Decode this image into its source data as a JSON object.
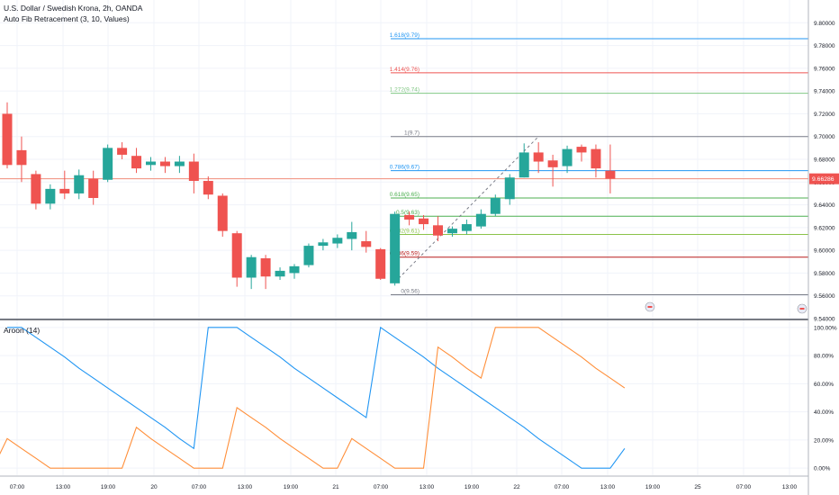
{
  "header": {
    "symbol": "U.S. Dollar / Swedish Krona, 2h, OANDA",
    "indicator": "Auto Fib Retracement (3, 10, Values)"
  },
  "aroon_label": "Aroon (14)",
  "colors": {
    "up": "#26a69a",
    "down": "#ef5350",
    "aroon_up": "#ff8f3a",
    "aroon_down": "#2196f3",
    "grid": "#f0f3fa",
    "price_line": "#f08c7a",
    "price_label_bg": "#ef5350"
  },
  "chart_data": [
    {
      "type": "candlestick",
      "ylim": [
        9.54,
        9.82
      ],
      "y_ticks": [
        "9.54000",
        "9.56000",
        "9.58000",
        "9.60000",
        "9.62000",
        "9.64000",
        "9.66000",
        "9.68000",
        "9.70000",
        "9.72000",
        "9.74000",
        "9.76000",
        "9.78000",
        "9.80000"
      ],
      "x_ticks": [
        "07:00",
        "13:00",
        "19:00",
        "20",
        "07:00",
        "13:00",
        "19:00",
        "21",
        "07:00",
        "13:00",
        "19:00",
        "22",
        "07:00",
        "13:00",
        "19:00",
        "25",
        "07:00",
        "13:00"
      ],
      "current_price": "9.66286",
      "candles": [
        {
          "o": 9.72,
          "h": 9.73,
          "l": 9.672,
          "c": 9.675
        },
        {
          "o": 9.688,
          "h": 9.7,
          "l": 9.66,
          "c": 9.675
        },
        {
          "o": 9.667,
          "h": 9.67,
          "l": 9.636,
          "c": 9.641
        },
        {
          "o": 9.641,
          "h": 9.658,
          "l": 9.636,
          "c": 9.654
        },
        {
          "o": 9.654,
          "h": 9.67,
          "l": 9.645,
          "c": 9.65
        },
        {
          "o": 9.65,
          "h": 9.671,
          "l": 9.645,
          "c": 9.666
        },
        {
          "o": 9.663,
          "h": 9.67,
          "l": 9.64,
          "c": 9.646
        },
        {
          "o": 9.662,
          "h": 9.693,
          "l": 9.66,
          "c": 9.69
        },
        {
          "o": 9.69,
          "h": 9.695,
          "l": 9.68,
          "c": 9.684
        },
        {
          "o": 9.683,
          "h": 9.69,
          "l": 9.668,
          "c": 9.672
        },
        {
          "o": 9.675,
          "h": 9.682,
          "l": 9.67,
          "c": 9.678
        },
        {
          "o": 9.678,
          "h": 9.682,
          "l": 9.668,
          "c": 9.674
        },
        {
          "o": 9.674,
          "h": 9.683,
          "l": 9.668,
          "c": 9.678
        },
        {
          "o": 9.678,
          "h": 9.685,
          "l": 9.65,
          "c": 9.661
        },
        {
          "o": 9.661,
          "h": 9.665,
          "l": 9.645,
          "c": 9.649
        },
        {
          "o": 9.648,
          "h": 9.65,
          "l": 9.612,
          "c": 9.617
        },
        {
          "o": 9.615,
          "h": 9.617,
          "l": 9.568,
          "c": 9.576
        },
        {
          "o": 9.576,
          "h": 9.596,
          "l": 9.566,
          "c": 9.594
        },
        {
          "o": 9.593,
          "h": 9.596,
          "l": 9.566,
          "c": 9.577
        },
        {
          "o": 9.577,
          "h": 9.585,
          "l": 9.574,
          "c": 9.582
        },
        {
          "o": 9.58,
          "h": 9.588,
          "l": 9.575,
          "c": 9.586
        },
        {
          "o": 9.587,
          "h": 9.606,
          "l": 9.585,
          "c": 9.604
        },
        {
          "o": 9.604,
          "h": 9.61,
          "l": 9.6,
          "c": 9.607
        },
        {
          "o": 9.606,
          "h": 9.614,
          "l": 9.602,
          "c": 9.611
        },
        {
          "o": 9.61,
          "h": 9.625,
          "l": 9.6,
          "c": 9.616
        },
        {
          "o": 9.608,
          "h": 9.617,
          "l": 9.598,
          "c": 9.603
        },
        {
          "o": 9.601,
          "h": 9.602,
          "l": 9.574,
          "c": 9.575
        },
        {
          "o": 9.571,
          "h": 9.634,
          "l": 9.569,
          "c": 9.632
        },
        {
          "o": 9.631,
          "h": 9.634,
          "l": 9.622,
          "c": 9.627
        },
        {
          "o": 9.628,
          "h": 9.631,
          "l": 9.618,
          "c": 9.623
        },
        {
          "o": 9.622,
          "h": 9.63,
          "l": 9.608,
          "c": 9.613
        },
        {
          "o": 9.615,
          "h": 9.621,
          "l": 9.612,
          "c": 9.619
        },
        {
          "o": 9.617,
          "h": 9.627,
          "l": 9.614,
          "c": 9.623
        },
        {
          "o": 9.621,
          "h": 9.636,
          "l": 9.619,
          "c": 9.632
        },
        {
          "o": 9.632,
          "h": 9.649,
          "l": 9.63,
          "c": 9.646
        },
        {
          "o": 9.645,
          "h": 9.667,
          "l": 9.64,
          "c": 9.664
        },
        {
          "o": 9.664,
          "h": 9.694,
          "l": 9.664,
          "c": 9.686
        },
        {
          "o": 9.686,
          "h": 9.695,
          "l": 9.668,
          "c": 9.678
        },
        {
          "o": 9.679,
          "h": 9.684,
          "l": 9.656,
          "c": 9.673
        },
        {
          "o": 9.674,
          "h": 9.692,
          "l": 9.668,
          "c": 9.689
        },
        {
          "o": 9.691,
          "h": 9.693,
          "l": 9.678,
          "c": 9.686
        },
        {
          "o": 9.689,
          "h": 9.693,
          "l": 9.664,
          "c": 9.672
        },
        {
          "o": 9.67,
          "h": 9.693,
          "l": 9.65,
          "c": 9.663
        }
      ],
      "fib_levels": [
        {
          "label": "1.618(9.79)",
          "value": 9.786,
          "color": "#2196f3"
        },
        {
          "label": "1.414(9.76)",
          "value": 9.756,
          "color": "#ef5350"
        },
        {
          "label": "1.272(9.74)",
          "value": 9.738,
          "color": "#81c784"
        },
        {
          "label": "1(9.7)",
          "value": 9.7,
          "color": "#787b86"
        },
        {
          "label": "0.786(9.67)",
          "value": 9.67,
          "color": "#2196f3"
        },
        {
          "label": "0.618(9.65)",
          "value": 9.646,
          "color": "#4caf50"
        },
        {
          "label": "0.5(9.63)",
          "value": 9.63,
          "color": "#4caf50"
        },
        {
          "label": "0.382(9.61)",
          "value": 9.614,
          "color": "#8bc34a"
        },
        {
          "label": "0.236(9.59)",
          "value": 9.594,
          "color": "#b71c1c"
        },
        {
          "label": "0(9.56)",
          "value": 9.561,
          "color": "#787b86"
        }
      ],
      "fib_trendline": {
        "from_candle": 27,
        "from": 9.572,
        "to_candle": 37,
        "to": 9.7
      }
    },
    {
      "type": "line",
      "title": "Aroon (14)",
      "ylim": [
        -5,
        105
      ],
      "y_ticks": [
        "0.00%",
        "20.00%",
        "40.00%",
        "60.00%",
        "80.00%",
        "100.00%"
      ],
      "series": [
        {
          "key": "up",
          "values": [
            0,
            21,
            14,
            7,
            0,
            0,
            0,
            0,
            0,
            0,
            29,
            21,
            14,
            7,
            0,
            0,
            0,
            43,
            36,
            29,
            21,
            14,
            7,
            0,
            0,
            21,
            14,
            7,
            0,
            0,
            0,
            86,
            79,
            71,
            64,
            100,
            100,
            100,
            100,
            93,
            86,
            79,
            71,
            64,
            57
          ]
        },
        {
          "key": "down",
          "values": [
            100,
            100,
            93,
            86,
            79,
            71,
            64,
            57,
            50,
            43,
            36,
            29,
            21,
            14,
            100,
            100,
            100,
            93,
            86,
            79,
            71,
            64,
            57,
            50,
            43,
            36,
            100,
            93,
            86,
            79,
            71,
            64,
            57,
            50,
            43,
            36,
            29,
            21,
            14,
            7,
            0,
            0,
            0,
            14
          ]
        }
      ],
      "aroon_down_start_candle": 0,
      "aroon_up_start_candle": -1
    }
  ]
}
